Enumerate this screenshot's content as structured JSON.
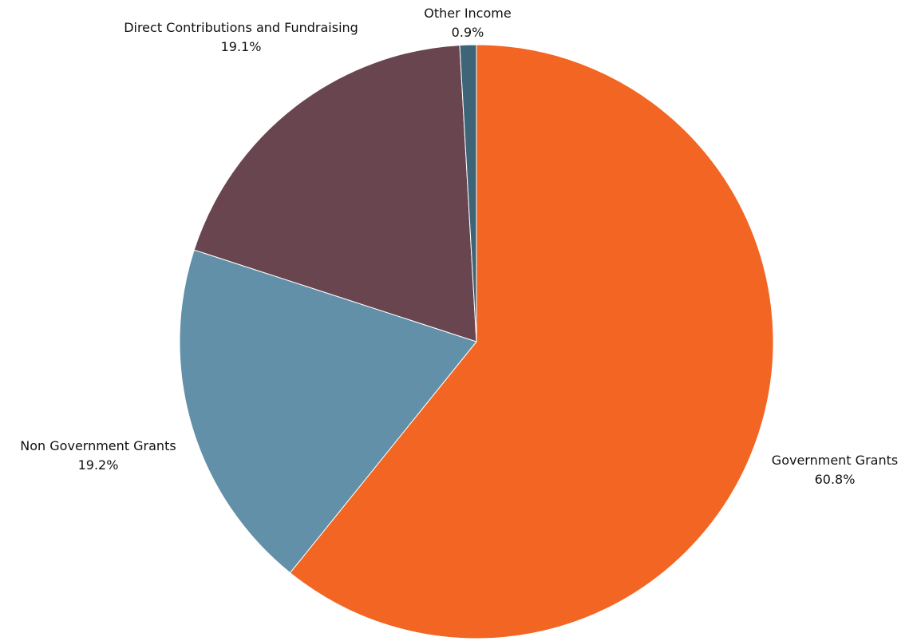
{
  "chart_data": {
    "type": "pie",
    "title": "",
    "legend": "none",
    "slices": [
      {
        "label": "Government Grants",
        "value": 60.8,
        "value_label": "60.8%",
        "color": "#F26522"
      },
      {
        "label": "Non Government Grants",
        "value": 19.2,
        "value_label": "19.2%",
        "color": "#6190A8"
      },
      {
        "label": "Direct Contributions and Fundraising",
        "value": 19.1,
        "value_label": "19.1%",
        "color": "#694550"
      },
      {
        "label": "Other Income",
        "value": 0.9,
        "value_label": "0.9%",
        "color": "#3E6478"
      }
    ]
  }
}
